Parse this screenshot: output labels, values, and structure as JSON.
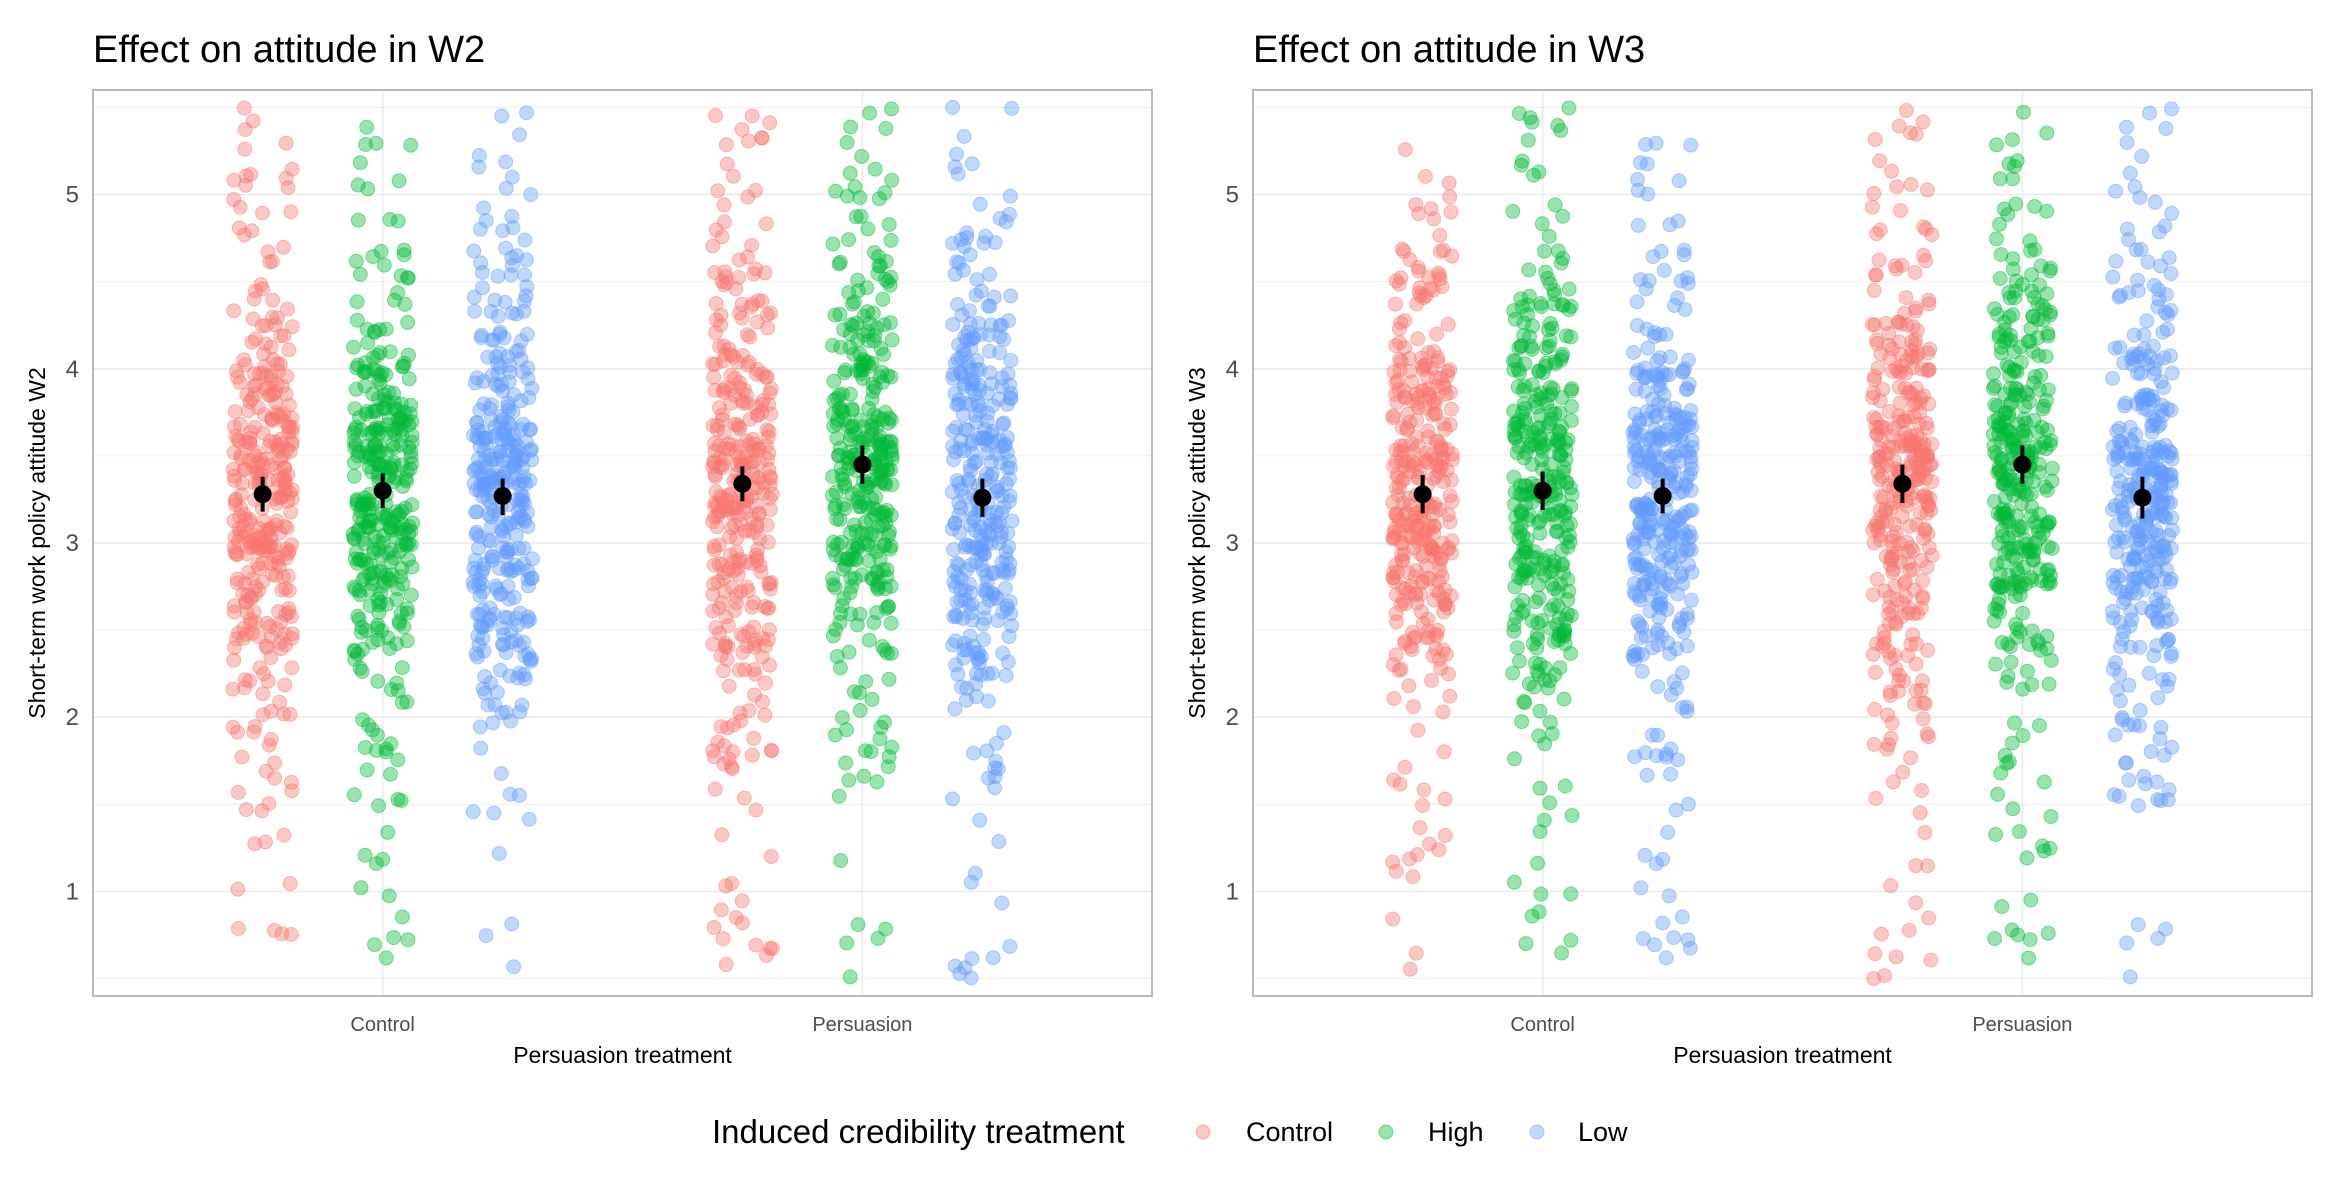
{
  "legend": {
    "title": "Induced credibility treatment",
    "placement": "bottom"
  },
  "colors": {
    "Control": "#F8766D",
    "High": "#00BA38",
    "Low": "#619CFF",
    "estimate": "#000000"
  },
  "chart_data": [
    {
      "type": "scatter",
      "title": "Effect on attitude in W2",
      "xlabel": "Persuasion treatment",
      "ylabel": "Short-term work policy attitude W2",
      "categories": [
        "Control",
        "Persuasion"
      ],
      "yticks": [
        "1",
        "2",
        "3",
        "4",
        "5"
      ],
      "ylim": [
        0.4,
        5.6
      ],
      "grid": true,
      "series": [
        {
          "name": "Control",
          "estimates": [
            {
              "x": "Control",
              "mean": 3.28,
              "lower": 3.18,
              "upper": 3.38
            },
            {
              "x": "Persuasion",
              "mean": 3.34,
              "lower": 3.24,
              "upper": 3.44
            }
          ]
        },
        {
          "name": "High",
          "estimates": [
            {
              "x": "Control",
              "mean": 3.3,
              "lower": 3.2,
              "upper": 3.4
            },
            {
              "x": "Persuasion",
              "mean": 3.45,
              "lower": 3.34,
              "upper": 3.56
            }
          ]
        },
        {
          "name": "Low",
          "estimates": [
            {
              "x": "Control",
              "mean": 3.27,
              "lower": 3.16,
              "upper": 3.37
            },
            {
              "x": "Persuasion",
              "mean": 3.26,
              "lower": 3.15,
              "upper": 3.37
            }
          ]
        }
      ]
    },
    {
      "type": "scatter",
      "title": "Effect on attitude in W3",
      "xlabel": "Persuasion treatment",
      "ylabel": "Short-term work policy attitude W3",
      "categories": [
        "Control",
        "Persuasion"
      ],
      "yticks": [
        "1",
        "2",
        "3",
        "4",
        "5"
      ],
      "ylim": [
        0.4,
        5.6
      ],
      "grid": true,
      "series": [
        {
          "name": "Control",
          "estimates": [
            {
              "x": "Control",
              "mean": 3.28,
              "lower": 3.17,
              "upper": 3.39
            },
            {
              "x": "Persuasion",
              "mean": 3.34,
              "lower": 3.23,
              "upper": 3.45
            }
          ]
        },
        {
          "name": "High",
          "estimates": [
            {
              "x": "Control",
              "mean": 3.3,
              "lower": 3.19,
              "upper": 3.41
            },
            {
              "x": "Persuasion",
              "mean": 3.45,
              "lower": 3.34,
              "upper": 3.56
            }
          ]
        },
        {
          "name": "Low",
          "estimates": [
            {
              "x": "Control",
              "mean": 3.27,
              "lower": 3.17,
              "upper": 3.37
            },
            {
              "x": "Persuasion",
              "mean": 3.26,
              "lower": 3.14,
              "upper": 3.38
            }
          ]
        }
      ]
    }
  ]
}
